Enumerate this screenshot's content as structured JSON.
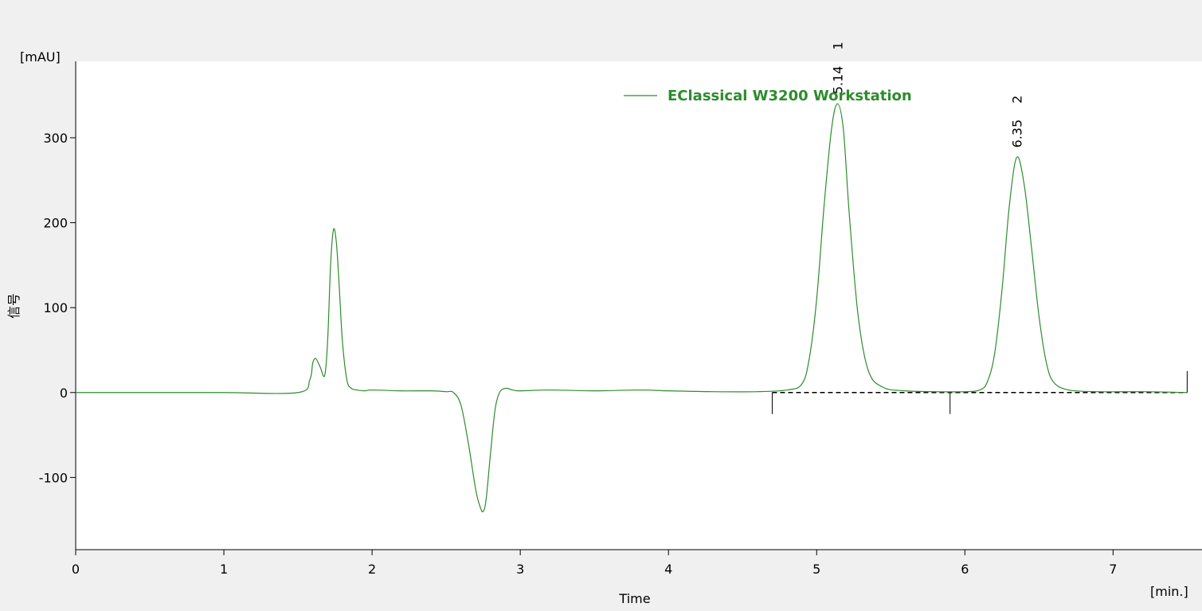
{
  "chart_data": {
    "type": "line",
    "title": "",
    "xlabel": "Time",
    "ylabel": "信号",
    "x_unit": "[min.]",
    "y_unit": "[mAU]",
    "xlim": [
      0,
      7.6
    ],
    "ylim": [
      -185,
      390
    ],
    "x_ticks": [
      0,
      1,
      2,
      3,
      4,
      5,
      6,
      7
    ],
    "x_tick_labels": [
      "0",
      "1",
      "2",
      "3",
      "4",
      "5",
      "6",
      "7"
    ],
    "y_ticks": [
      -100,
      0,
      100,
      200,
      300
    ],
    "y_tick_labels": [
      "-100",
      "0",
      "100",
      "200",
      "300"
    ],
    "grid": false,
    "legend_position": "top-right",
    "colors": {
      "trace": "#2e8b2e",
      "legend_text": "#2e8b2e",
      "axis": "#000000",
      "plot_bg": "#ffffff",
      "page_bg": "#f0f0f0",
      "baseline": "#000000"
    },
    "series": [
      {
        "name": "EClassical W3200 Workstation",
        "x": [
          0,
          0.5,
          1.0,
          1.5,
          1.58,
          1.6,
          1.62,
          1.65,
          1.68,
          1.7,
          1.72,
          1.74,
          1.76,
          1.78,
          1.8,
          1.83,
          1.86,
          1.9,
          1.95,
          2.0,
          2.2,
          2.4,
          2.5,
          2.55,
          2.6,
          2.65,
          2.7,
          2.73,
          2.75,
          2.77,
          2.8,
          2.83,
          2.86,
          2.9,
          2.95,
          3.0,
          3.2,
          3.5,
          3.8,
          4.0,
          4.3,
          4.6,
          4.8,
          4.9,
          4.95,
          5.0,
          5.05,
          5.1,
          5.14,
          5.18,
          5.22,
          5.28,
          5.35,
          5.45,
          5.6,
          5.8,
          6.0,
          6.1,
          6.15,
          6.2,
          6.25,
          6.3,
          6.35,
          6.4,
          6.45,
          6.5,
          6.55,
          6.6,
          6.7,
          6.9,
          7.2,
          7.5
        ],
        "y": [
          0,
          0,
          0,
          0,
          15,
          35,
          40,
          30,
          20,
          60,
          150,
          192,
          175,
          120,
          60,
          15,
          5,
          3,
          2,
          3,
          2,
          2,
          1,
          0,
          -15,
          -60,
          -115,
          -135,
          -140,
          -125,
          -70,
          -20,
          0,
          5,
          3,
          2,
          3,
          2,
          3,
          2,
          1,
          1,
          3,
          10,
          40,
          110,
          220,
          310,
          340,
          310,
          210,
          90,
          25,
          6,
          2,
          1,
          1,
          3,
          12,
          45,
          120,
          220,
          277,
          245,
          170,
          90,
          35,
          12,
          3,
          1,
          1,
          0
        ]
      }
    ],
    "peaks": [
      {
        "retention_time": "5.14",
        "number": "1",
        "rt_value": 5.14,
        "height": 340
      },
      {
        "retention_time": "6.35",
        "number": "2",
        "rt_value": 6.35,
        "height": 277
      }
    ],
    "integration": {
      "baseline_start": 4.7,
      "baseline_end": 7.5,
      "markers": [
        4.7,
        5.9,
        7.5
      ]
    }
  }
}
